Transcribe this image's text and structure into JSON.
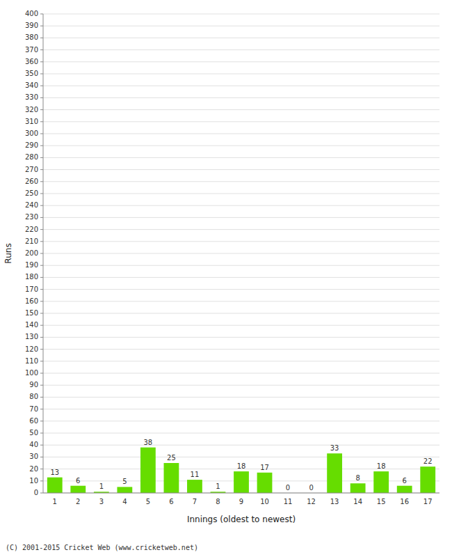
{
  "chart_data": {
    "type": "bar",
    "xlabel": "Innings (oldest to newest)",
    "ylabel": "Runs",
    "categories": [
      "1",
      "2",
      "3",
      "4",
      "5",
      "6",
      "7",
      "8",
      "9",
      "10",
      "11",
      "12",
      "13",
      "14",
      "15",
      "16",
      "17"
    ],
    "values": [
      13,
      6,
      1,
      5,
      38,
      25,
      11,
      1,
      18,
      17,
      0,
      0,
      33,
      8,
      18,
      6,
      22
    ],
    "color": "#66dd00",
    "ylim": [
      0,
      400
    ],
    "yticks": [
      0,
      10,
      20,
      30,
      40,
      50,
      60,
      70,
      80,
      90,
      100,
      110,
      120,
      130,
      140,
      150,
      160,
      170,
      180,
      190,
      200,
      210,
      220,
      230,
      240,
      250,
      260,
      270,
      280,
      290,
      300,
      310,
      320,
      330,
      340,
      350,
      360,
      370,
      380,
      390,
      400
    ],
    "grid": true,
    "data_labels": true,
    "annotations": [
      "(C) 2001-2015 Cricket Web (www.cricketweb.net)"
    ]
  }
}
